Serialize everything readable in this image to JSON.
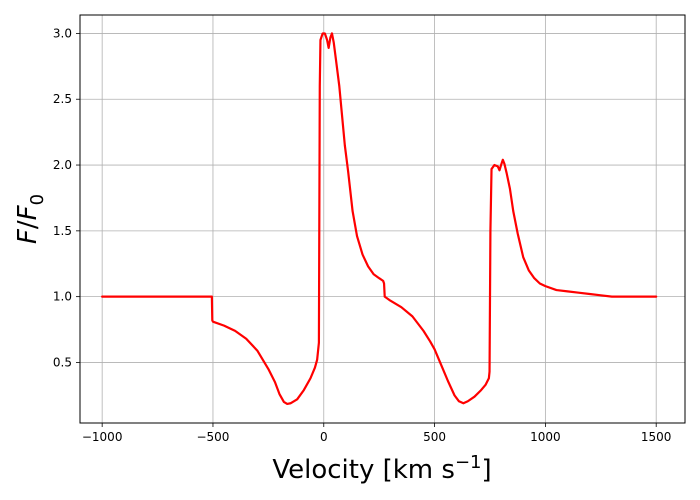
{
  "chart_data": {
    "type": "line",
    "title": "",
    "xlabel": "Velocity [km s",
    "xlabel_sup": "−1",
    "xlabel_end": "]",
    "ylabel_F": "F",
    "ylabel_slash": "/",
    "ylabel_F0": "F",
    "ylabel_sub": "0",
    "xlim": [
      -1100,
      1630
    ],
    "ylim": [
      0.04,
      3.14
    ],
    "grid": true,
    "x_ticks": [
      -1000,
      -500,
      0,
      500,
      1000,
      1500
    ],
    "x_tick_labels": [
      "−1000",
      "−500",
      "0",
      "500",
      "1000",
      "1500"
    ],
    "y_ticks": [
      0.5,
      1.0,
      1.5,
      2.0,
      2.5,
      3.0
    ],
    "y_tick_labels": [
      "0.5",
      "1.0",
      "1.5",
      "2.0",
      "2.5",
      "3.0"
    ],
    "series": [
      {
        "color": "#ff0000",
        "points": [
          [
            -1000,
            1.0
          ],
          [
            -505,
            1.0
          ],
          [
            -503,
            0.82
          ],
          [
            -500,
            0.81
          ],
          [
            -450,
            0.78
          ],
          [
            -400,
            0.74
          ],
          [
            -350,
            0.68
          ],
          [
            -300,
            0.59
          ],
          [
            -250,
            0.45
          ],
          [
            -220,
            0.35
          ],
          [
            -200,
            0.26
          ],
          [
            -180,
            0.2
          ],
          [
            -165,
            0.185
          ],
          [
            -150,
            0.19
          ],
          [
            -120,
            0.22
          ],
          [
            -90,
            0.29
          ],
          [
            -60,
            0.38
          ],
          [
            -40,
            0.46
          ],
          [
            -30,
            0.52
          ],
          [
            -25,
            0.6
          ],
          [
            -22,
            0.65
          ],
          [
            -18,
            2.6
          ],
          [
            -15,
            2.95
          ],
          [
            -5,
            3.0
          ],
          [
            5,
            3.0
          ],
          [
            15,
            2.95
          ],
          [
            22,
            2.89
          ],
          [
            30,
            2.97
          ],
          [
            37,
            3.0
          ],
          [
            45,
            2.93
          ],
          [
            55,
            2.8
          ],
          [
            70,
            2.6
          ],
          [
            80,
            2.42
          ],
          [
            95,
            2.15
          ],
          [
            110,
            1.95
          ],
          [
            130,
            1.65
          ],
          [
            150,
            1.46
          ],
          [
            175,
            1.32
          ],
          [
            200,
            1.23
          ],
          [
            225,
            1.17
          ],
          [
            250,
            1.14
          ],
          [
            268,
            1.12
          ],
          [
            272,
            1.1
          ],
          [
            275,
            1.0
          ],
          [
            300,
            0.97
          ],
          [
            350,
            0.92
          ],
          [
            400,
            0.85
          ],
          [
            450,
            0.74
          ],
          [
            480,
            0.66
          ],
          [
            500,
            0.6
          ],
          [
            530,
            0.48
          ],
          [
            560,
            0.36
          ],
          [
            590,
            0.25
          ],
          [
            610,
            0.205
          ],
          [
            630,
            0.19
          ],
          [
            650,
            0.205
          ],
          [
            680,
            0.24
          ],
          [
            710,
            0.29
          ],
          [
            730,
            0.33
          ],
          [
            745,
            0.38
          ],
          [
            748,
            0.43
          ],
          [
            752,
            1.5
          ],
          [
            757,
            1.97
          ],
          [
            770,
            2.0
          ],
          [
            785,
            1.99
          ],
          [
            793,
            1.96
          ],
          [
            800,
            2.0
          ],
          [
            808,
            2.04
          ],
          [
            815,
            2.01
          ],
          [
            825,
            1.94
          ],
          [
            840,
            1.82
          ],
          [
            855,
            1.65
          ],
          [
            875,
            1.48
          ],
          [
            900,
            1.3
          ],
          [
            925,
            1.2
          ],
          [
            950,
            1.14
          ],
          [
            975,
            1.1
          ],
          [
            1000,
            1.08
          ],
          [
            1050,
            1.05
          ],
          [
            1100,
            1.04
          ],
          [
            1150,
            1.03
          ],
          [
            1200,
            1.02
          ],
          [
            1250,
            1.01
          ],
          [
            1300,
            1.0
          ],
          [
            1500,
            1.0
          ]
        ]
      }
    ]
  }
}
